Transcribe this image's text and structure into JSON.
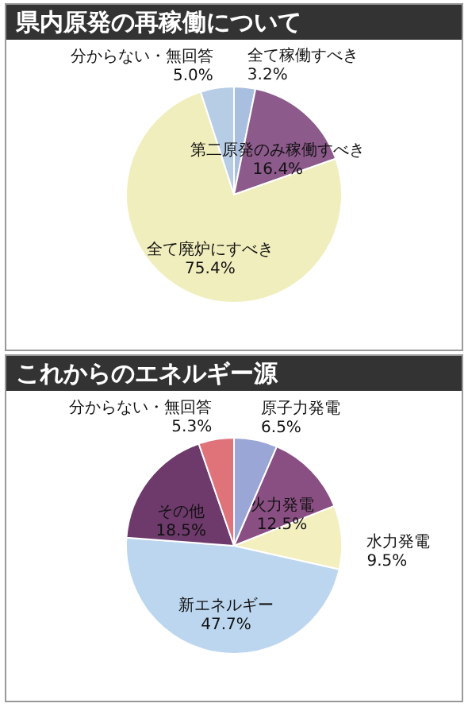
{
  "chart_data": [
    {
      "type": "pie",
      "title": "県内原発の再稼働について",
      "categories": [
        "全て稼働すべき",
        "第二原発のみ稼働すべき",
        "全て廃炉にすべき",
        "分からない・無回答"
      ],
      "values": [
        3.2,
        16.4,
        75.4,
        5.0
      ],
      "value_labels": [
        "3.2%",
        "16.4%",
        "75.4%",
        "5.0%"
      ],
      "colors": [
        "#a9bfe0",
        "#8d5a8c",
        "#f1eebd",
        "#b7cde6"
      ]
    },
    {
      "type": "pie",
      "title": "これからのエネルギー源",
      "categories": [
        "原子力発電",
        "火力発電",
        "水力発電",
        "新エネルギー",
        "その他",
        "分からない・無回答"
      ],
      "values": [
        6.5,
        12.5,
        9.5,
        47.7,
        18.5,
        5.3
      ],
      "value_labels": [
        "6.5%",
        "12.5%",
        "9.5%",
        "47.7%",
        "18.5%",
        "5.3%"
      ],
      "colors": [
        "#9aa6d6",
        "#8a4f82",
        "#f3efbf",
        "#bcd6ef",
        "#6e3a6c",
        "#e0737a"
      ]
    }
  ]
}
